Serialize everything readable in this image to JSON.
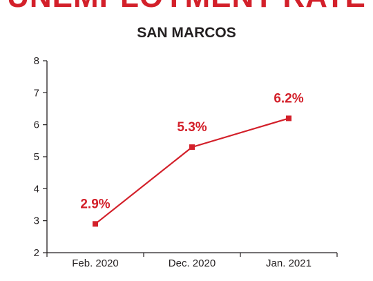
{
  "colors": {
    "accent": "#d3202a",
    "text": "#231f20",
    "axis": "#231f20"
  },
  "chart_data": {
    "type": "line",
    "title": "UNEMPLOYMENT RATE",
    "subtitle": "SAN MARCOS",
    "xlabel": "",
    "ylabel": "",
    "categories": [
      "Feb. 2020",
      "Dec. 2020",
      "Jan. 2021"
    ],
    "series": [
      {
        "values": [
          2.9,
          5.3,
          6.2
        ],
        "labels": [
          "2.9%",
          "5.3%",
          "6.2%"
        ]
      }
    ],
    "ylim": [
      2,
      8
    ],
    "yticks": [
      "2",
      "3",
      "4",
      "5",
      "6",
      "7",
      "8"
    ],
    "grid": false,
    "legend": "none",
    "marker": "square"
  }
}
